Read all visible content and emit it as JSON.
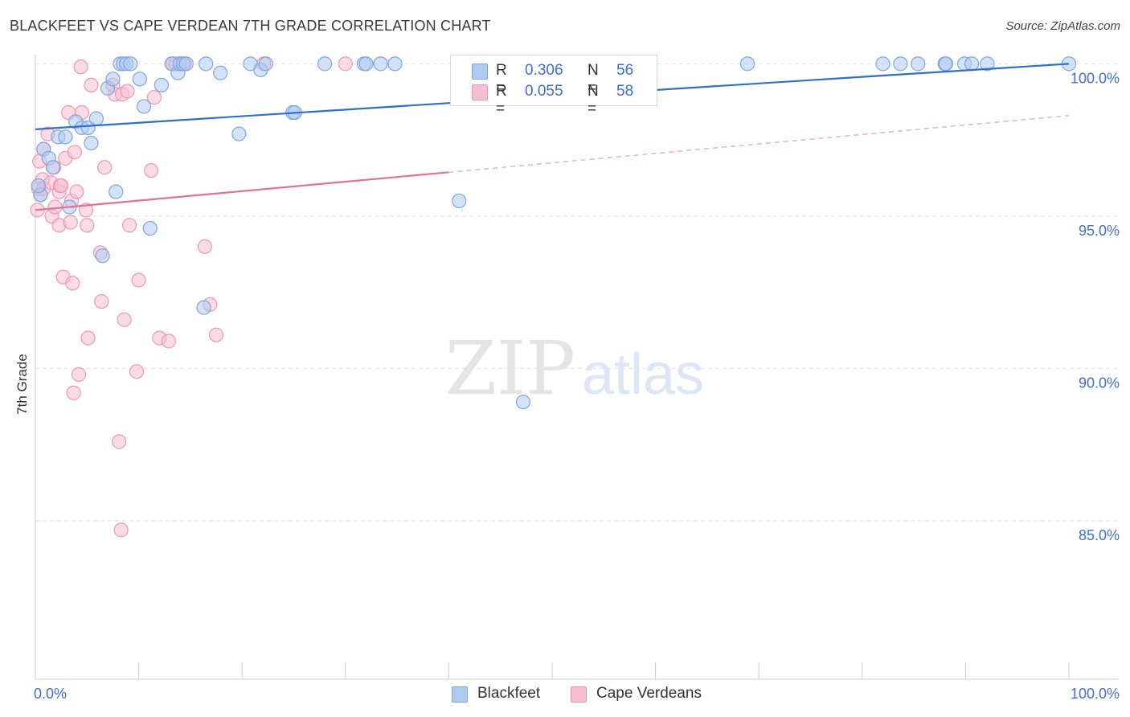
{
  "title": "BLACKFEET VS CAPE VERDEAN 7TH GRADE CORRELATION CHART",
  "source": "Source: ZipAtlas.com",
  "watermark": {
    "zip": "ZIP",
    "atlas": "atlas"
  },
  "legend": {
    "r_label": "R =",
    "n_label": "N =",
    "rows": [
      {
        "r": "0.306",
        "n": "56"
      },
      {
        "r": "0.055",
        "n": "58"
      }
    ]
  },
  "chart_data": {
    "type": "scatter",
    "title": "BLACKFEET VS CAPE VERDEAN 7TH GRADE CORRELATION CHART",
    "xlabel": "",
    "ylabel": "7th Grade",
    "xlim": [
      0,
      100
    ],
    "ylim": [
      79.8,
      100.3
    ],
    "x_tick_labels": [
      {
        "value": 0,
        "label": "0.0%"
      },
      {
        "value": 100,
        "label": "100.0%"
      }
    ],
    "y_ticks": [
      {
        "value": 100,
        "label": "100.0%"
      },
      {
        "value": 95,
        "label": "95.0%"
      },
      {
        "value": 90,
        "label": "90.0%"
      },
      {
        "value": 85,
        "label": "85.0%"
      }
    ],
    "x_minor_ticks": [
      0,
      10,
      20,
      30,
      40,
      50,
      60,
      70,
      80,
      90,
      100
    ],
    "colors": {
      "blackfeet_fill": "#aecbf2",
      "blackfeet_stroke": "#7ea6de",
      "blackfeet_line": "#2f6fcc",
      "cape_fill": "#f7bdd0",
      "cape_stroke": "#ee97b5",
      "cape_line": "#e66f96",
      "tick_label": "#3f6fd1",
      "grid": "#e4e4e4",
      "axis": "#cccccc"
    },
    "series": [
      {
        "name": "Blackfeet",
        "r": 0.306,
        "n": 56,
        "trend": {
          "x0": 0,
          "y0": 97.85,
          "x1": 100,
          "y1": 100.0,
          "dashed_from": null
        },
        "points": [
          [
            0.5,
            95.7
          ],
          [
            0.8,
            97.2
          ],
          [
            1.3,
            96.9
          ],
          [
            1.7,
            96.6
          ],
          [
            2.2,
            97.6
          ],
          [
            2.9,
            97.6
          ],
          [
            3.3,
            95.3
          ],
          [
            3.9,
            98.1
          ],
          [
            4.5,
            97.9
          ],
          [
            5.1,
            97.9
          ],
          [
            5.4,
            97.4
          ],
          [
            5.9,
            98.2
          ],
          [
            6.5,
            93.7
          ],
          [
            7.0,
            99.2
          ],
          [
            7.5,
            99.5
          ],
          [
            7.8,
            95.8
          ],
          [
            8.2,
            100.0
          ],
          [
            8.5,
            100.0
          ],
          [
            8.8,
            100.0
          ],
          [
            9.2,
            100.0
          ],
          [
            10.1,
            99.5
          ],
          [
            10.5,
            98.6
          ],
          [
            11.1,
            94.6
          ],
          [
            12.2,
            99.3
          ],
          [
            13.2,
            100.0
          ],
          [
            13.8,
            99.7
          ],
          [
            14.0,
            100.0
          ],
          [
            14.3,
            100.0
          ],
          [
            14.6,
            100.0
          ],
          [
            16.3,
            92.0
          ],
          [
            16.5,
            100.0
          ],
          [
            17.9,
            99.7
          ],
          [
            19.7,
            97.7
          ],
          [
            20.8,
            100.0
          ],
          [
            21.8,
            99.8
          ],
          [
            22.3,
            100.0
          ],
          [
            24.9,
            98.4
          ],
          [
            25.1,
            98.4
          ],
          [
            28.0,
            100.0
          ],
          [
            31.8,
            100.0
          ],
          [
            32.0,
            100.0
          ],
          [
            33.4,
            100.0
          ],
          [
            34.8,
            100.0
          ],
          [
            41.0,
            95.5
          ],
          [
            47.2,
            88.9
          ],
          [
            68.9,
            100.0
          ],
          [
            82.0,
            100.0
          ],
          [
            83.7,
            100.0
          ],
          [
            85.4,
            100.0
          ],
          [
            88.0,
            100.0
          ],
          [
            88.1,
            100.0
          ],
          [
            89.9,
            100.0
          ],
          [
            90.6,
            100.0
          ],
          [
            92.1,
            100.0
          ],
          [
            100.0,
            100.0
          ],
          [
            0.3,
            96.0
          ]
        ]
      },
      {
        "name": "Cape Verdeans",
        "r": 0.055,
        "n": 58,
        "trend": {
          "x0": 0,
          "y0": 95.2,
          "x1": 100,
          "y1": 98.3,
          "dashed_from": 40
        },
        "points": [
          [
            0.2,
            95.2
          ],
          [
            0.3,
            95.9
          ],
          [
            0.5,
            95.7
          ],
          [
            0.7,
            96.2
          ],
          [
            0.8,
            95.9
          ],
          [
            0.8,
            97.2
          ],
          [
            1.2,
            97.7
          ],
          [
            1.5,
            96.1
          ],
          [
            1.6,
            95.0
          ],
          [
            1.8,
            96.6
          ],
          [
            1.9,
            95.3
          ],
          [
            2.3,
            94.7
          ],
          [
            2.3,
            95.8
          ],
          [
            2.4,
            96.0
          ],
          [
            2.5,
            96.0
          ],
          [
            2.7,
            93.0
          ],
          [
            2.9,
            96.9
          ],
          [
            3.2,
            98.4
          ],
          [
            3.4,
            94.8
          ],
          [
            3.5,
            95.5
          ],
          [
            3.6,
            92.8
          ],
          [
            3.7,
            89.2
          ],
          [
            3.8,
            97.1
          ],
          [
            4.0,
            95.8
          ],
          [
            4.2,
            89.8
          ],
          [
            4.4,
            99.9
          ],
          [
            4.5,
            98.4
          ],
          [
            4.9,
            95.2
          ],
          [
            5.0,
            94.7
          ],
          [
            5.1,
            91.0
          ],
          [
            5.4,
            99.3
          ],
          [
            6.3,
            93.8
          ],
          [
            6.4,
            92.2
          ],
          [
            6.7,
            96.6
          ],
          [
            7.5,
            99.3
          ],
          [
            7.7,
            99.0
          ],
          [
            8.1,
            87.6
          ],
          [
            8.3,
            84.7
          ],
          [
            8.4,
            99.0
          ],
          [
            8.6,
            91.6
          ],
          [
            8.9,
            99.1
          ],
          [
            9.1,
            94.7
          ],
          [
            9.8,
            89.9
          ],
          [
            10.0,
            92.9
          ],
          [
            11.2,
            96.5
          ],
          [
            11.5,
            98.9
          ],
          [
            12.0,
            91.0
          ],
          [
            12.9,
            90.9
          ],
          [
            13.3,
            100.0
          ],
          [
            13.6,
            100.0
          ],
          [
            14.0,
            100.0
          ],
          [
            14.4,
            100.0
          ],
          [
            16.4,
            94.0
          ],
          [
            16.9,
            92.1
          ],
          [
            17.5,
            91.1
          ],
          [
            22.1,
            100.0
          ],
          [
            30.0,
            100.0
          ],
          [
            0.4,
            96.8
          ]
        ]
      }
    ]
  },
  "bottom_legend": [
    {
      "label": "Blackfeet"
    },
    {
      "label": "Cape Verdeans"
    }
  ]
}
